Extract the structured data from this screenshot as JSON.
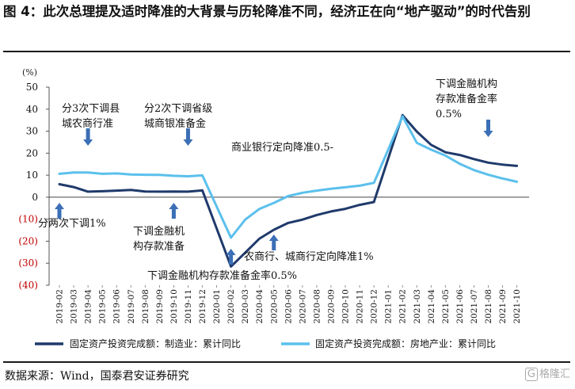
{
  "figure": {
    "title": "图 4：此次总理提及适时降准的大背景与历轮降准不同，经济正在向“地产驱动”的时代告别",
    "source": "数据来源：Wind，国泰君安证券研究",
    "watermark_logo": "G",
    "watermark_text": "格隆汇"
  },
  "chart_data": {
    "type": "line",
    "unit_label": "(%)",
    "ylim": [
      -40,
      50
    ],
    "y_ticks": [
      50,
      40,
      30,
      20,
      10,
      0,
      -10,
      -20,
      -30,
      -40
    ],
    "y_tick_labels": [
      "50",
      "40",
      "30",
      "20",
      "10",
      "0",
      "(10)",
      "(20)",
      "(30)",
      "(40)"
    ],
    "categories": [
      "2019-02",
      "2019-03",
      "2019-04",
      "2019-05",
      "2019-06",
      "2019-07",
      "2019-08",
      "2019-09",
      "2019-10",
      "2019-11",
      "2019-12",
      "2020-01",
      "2020-02",
      "2020-03",
      "2020-04",
      "2020-05",
      "2020-06",
      "2020-07",
      "2020-08",
      "2020-09",
      "2020-10",
      "2020-11",
      "2020-12",
      "2021-01",
      "2021-02",
      "2021-03",
      "2021-04",
      "2021-05",
      "2021-06",
      "2021-07",
      "2021-08",
      "2021-09",
      "2021-10"
    ],
    "series": [
      {
        "name": "固定资产投资完成额：制造业：累计同比",
        "color": "#1f3a6b",
        "values": [
          5.9,
          4.6,
          2.5,
          2.7,
          3.0,
          3.3,
          2.6,
          2.5,
          2.6,
          2.5,
          3.1,
          null,
          -31.5,
          -25.2,
          -18.8,
          -14.8,
          -11.7,
          -10.2,
          -8.1,
          -6.5,
          -5.3,
          -3.5,
          -2.2,
          null,
          37.3,
          29.8,
          23.8,
          20.4,
          19.2,
          17.3,
          15.7,
          14.8,
          14.2
        ]
      },
      {
        "name": "固定资产投资完成额：房地产业：累计同比",
        "color": "#5bc0ec",
        "values": [
          10.6,
          11.2,
          11.2,
          10.6,
          10.8,
          10.3,
          10.2,
          10.1,
          9.7,
          9.5,
          9.9,
          null,
          -18.4,
          -10.2,
          -5.3,
          -2.6,
          0.5,
          2.0,
          3.0,
          3.8,
          4.5,
          5.2,
          6.5,
          null,
          36.7,
          24.7,
          21.6,
          18.9,
          15.2,
          12.3,
          10.2,
          8.5,
          7.0
        ]
      }
    ],
    "annotations": [
      {
        "id": "ann-1",
        "text_lines": [
          "分3次下调县",
          "城农商行准"
        ],
        "arrow_cat": "2019-04",
        "arrow_dir": "down"
      },
      {
        "id": "ann-2",
        "text_lines": [
          "分2次下调省级",
          "城商银准备金"
        ],
        "arrow_cat": "2019-11",
        "arrow_dir": "down"
      },
      {
        "id": "ann-3",
        "text_lines": [
          "商业银行定向降准0.5-"
        ],
        "arrow_cat": "",
        "arrow_dir": ""
      },
      {
        "id": "ann-4",
        "text_lines": [
          "分两次下调1%"
        ],
        "arrow_cat": "2019-02",
        "arrow_dir": "up"
      },
      {
        "id": "ann-5",
        "text_lines": [
          "下调金融机",
          "构存款准备"
        ],
        "arrow_cat": "2019-10",
        "arrow_dir": "up"
      },
      {
        "id": "ann-6",
        "text_lines": [
          "农商行、城商行定向降准1%"
        ],
        "arrow_cat": "2020-05",
        "arrow_dir": "up"
      },
      {
        "id": "ann-7",
        "text_lines": [
          "下调金融机构存款准备金率0.5%"
        ],
        "arrow_cat": "2020-02",
        "arrow_dir": "up"
      },
      {
        "id": "ann-8",
        "text_lines": [
          "下调金融机构",
          "存款准备金率",
          "0.5%"
        ],
        "arrow_cat": "2021-08",
        "arrow_dir": "down"
      }
    ],
    "legend_position": "bottom",
    "grid": false
  }
}
